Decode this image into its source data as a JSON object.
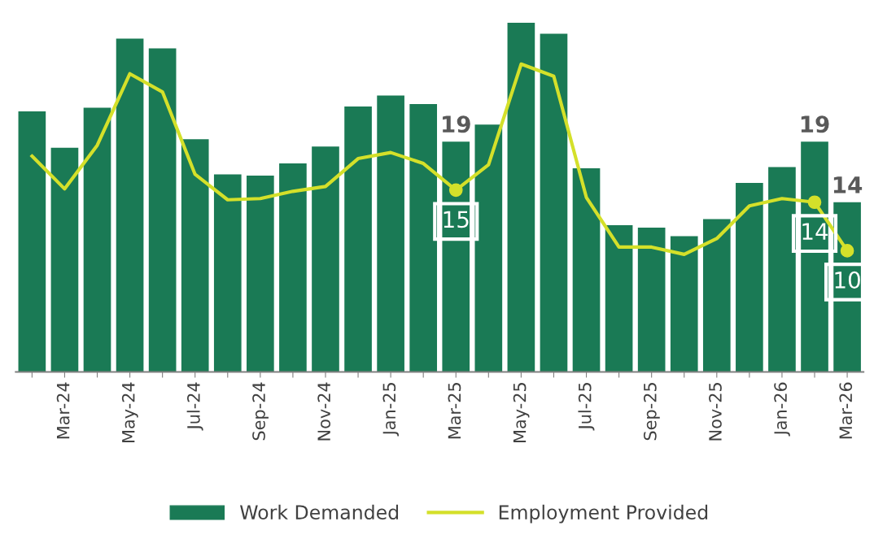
{
  "chart_data": {
    "type": "bar",
    "categories": [
      null,
      "Mar-24",
      null,
      "May-24",
      null,
      "Jul-24",
      null,
      "Sep-24",
      null,
      "Nov-24",
      null,
      "Jan-25",
      null,
      "Mar-25",
      null,
      "May-25",
      null,
      "Jul-25",
      null,
      "Sep-25",
      null,
      "Nov-25",
      null,
      "Jan-26",
      null,
      "Mar-26"
    ],
    "series": [
      {
        "name": "Work Demanded",
        "color": "#1a7a55",
        "values": [
          21.5,
          18.5,
          21.8,
          27.5,
          26.7,
          19.2,
          16.3,
          16.2,
          17.2,
          18.6,
          21.9,
          22.8,
          22.1,
          19,
          20.4,
          28.8,
          27.9,
          16.8,
          12.1,
          11.9,
          11.2,
          12.6,
          15.6,
          16.9,
          19,
          14
        ],
        "value_labels": [
          null,
          null,
          null,
          null,
          null,
          null,
          null,
          null,
          null,
          null,
          null,
          null,
          null,
          "19",
          null,
          null,
          null,
          null,
          null,
          null,
          null,
          null,
          null,
          null,
          "19",
          "14"
        ]
      },
      {
        "name": "Employment Provided",
        "type": "line",
        "color": "#d4e02a",
        "values": [
          17.8,
          15.1,
          18.7,
          24.6,
          23.1,
          16.3,
          14.2,
          14.3,
          14.9,
          15.3,
          17.6,
          18.1,
          17.2,
          15,
          17.1,
          25.4,
          24.4,
          14.4,
          10.3,
          10.3,
          9.7,
          11.0,
          13.7,
          14.3,
          14,
          10
        ],
        "value_labels": [
          null,
          null,
          null,
          null,
          null,
          null,
          null,
          null,
          null,
          null,
          null,
          null,
          null,
          "15",
          null,
          null,
          null,
          null,
          null,
          null,
          null,
          null,
          null,
          null,
          "14",
          "10"
        ]
      }
    ],
    "legend": "bottom",
    "grid": false
  }
}
